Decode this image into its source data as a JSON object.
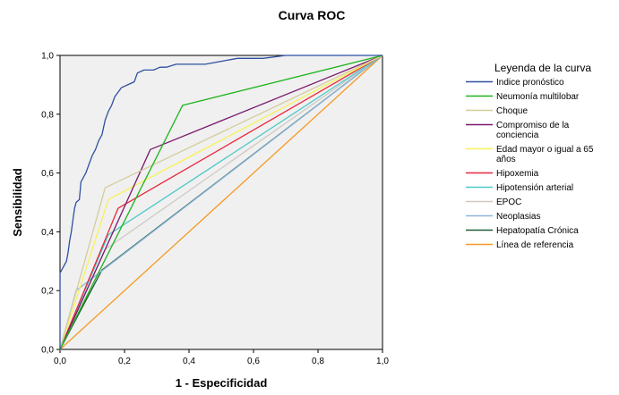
{
  "chart_data": {
    "type": "line",
    "title": "Curva ROC",
    "xlabel": "1 - Especificidad",
    "ylabel": "Sensibilidad",
    "xlim": [
      0,
      1
    ],
    "ylim": [
      0,
      1
    ],
    "xticks": [
      "0,0",
      "0,2",
      "0,4",
      "0,6",
      "0,8",
      "1,0"
    ],
    "yticks": [
      "0,0",
      "0,2",
      "0,4",
      "0,6",
      "0,8",
      "1,0"
    ],
    "grid": false,
    "legend_title": "Leyenda de la curva",
    "legend_position": "right",
    "series": [
      {
        "name": "Indice pronóstico",
        "color": "#2e4fa0",
        "points": [
          [
            0,
            0
          ],
          [
            0,
            0.26
          ],
          [
            0.01,
            0.28
          ],
          [
            0.02,
            0.3
          ],
          [
            0.025,
            0.33
          ],
          [
            0.03,
            0.37
          ],
          [
            0.035,
            0.4
          ],
          [
            0.04,
            0.44
          ],
          [
            0.045,
            0.48
          ],
          [
            0.05,
            0.5
          ],
          [
            0.06,
            0.51
          ],
          [
            0.065,
            0.57
          ],
          [
            0.08,
            0.6
          ],
          [
            0.09,
            0.63
          ],
          [
            0.1,
            0.66
          ],
          [
            0.11,
            0.68
          ],
          [
            0.12,
            0.71
          ],
          [
            0.13,
            0.73
          ],
          [
            0.14,
            0.78
          ],
          [
            0.15,
            0.81
          ],
          [
            0.16,
            0.83
          ],
          [
            0.17,
            0.86
          ],
          [
            0.19,
            0.89
          ],
          [
            0.21,
            0.9
          ],
          [
            0.23,
            0.91
          ],
          [
            0.24,
            0.94
          ],
          [
            0.26,
            0.95
          ],
          [
            0.29,
            0.95
          ],
          [
            0.31,
            0.96
          ],
          [
            0.33,
            0.96
          ],
          [
            0.36,
            0.97
          ],
          [
            0.45,
            0.97
          ],
          [
            0.5,
            0.98
          ],
          [
            0.55,
            0.99
          ],
          [
            0.63,
            0.99
          ],
          [
            0.7,
            1.0
          ],
          [
            1,
            1
          ]
        ]
      },
      {
        "name": "Neumonía multilobar",
        "color": "#1fb31f",
        "points": [
          [
            0,
            0
          ],
          [
            0.38,
            0.83
          ],
          [
            1,
            1
          ]
        ]
      },
      {
        "name": "Choque",
        "color": "#d4cc9c",
        "points": [
          [
            0,
            0
          ],
          [
            0.14,
            0.55
          ],
          [
            1,
            1
          ]
        ]
      },
      {
        "name": "Compromiso de la conciencia",
        "color": "#7a1a6e",
        "points": [
          [
            0,
            0
          ],
          [
            0.28,
            0.68
          ],
          [
            1,
            1
          ]
        ]
      },
      {
        "name": "Edad mayor o igual a 65 años",
        "color": "#f7f25a",
        "points": [
          [
            0,
            0
          ],
          [
            0.15,
            0.51
          ],
          [
            1,
            1
          ]
        ]
      },
      {
        "name": "Hipoxemia",
        "color": "#e8283c",
        "points": [
          [
            0,
            0
          ],
          [
            0.18,
            0.48
          ],
          [
            1,
            1
          ]
        ]
      },
      {
        "name": "Hipotensión arterial",
        "color": "#4ec9c6",
        "points": [
          [
            0,
            0
          ],
          [
            0.15,
            0.39
          ],
          [
            1,
            1
          ]
        ]
      },
      {
        "name": "EPOC",
        "color": "#cfc9c4",
        "points": [
          [
            0,
            0
          ],
          [
            0.14,
            0.34
          ],
          [
            1,
            1
          ]
        ]
      },
      {
        "name": "Neoplasias",
        "color": "#8cb4dc",
        "points": [
          [
            0,
            0
          ],
          [
            0.05,
            0.2
          ],
          [
            1,
            1
          ]
        ]
      },
      {
        "name": "Hepatopatía Crónica",
        "color": "#1e5a32",
        "points": [
          [
            0,
            0
          ],
          [
            0.13,
            0.27
          ],
          [
            1,
            1
          ]
        ]
      },
      {
        "name": "Línea de referencia",
        "color": "#f59a23",
        "points": [
          [
            0,
            0
          ],
          [
            1,
            1
          ]
        ]
      }
    ]
  }
}
